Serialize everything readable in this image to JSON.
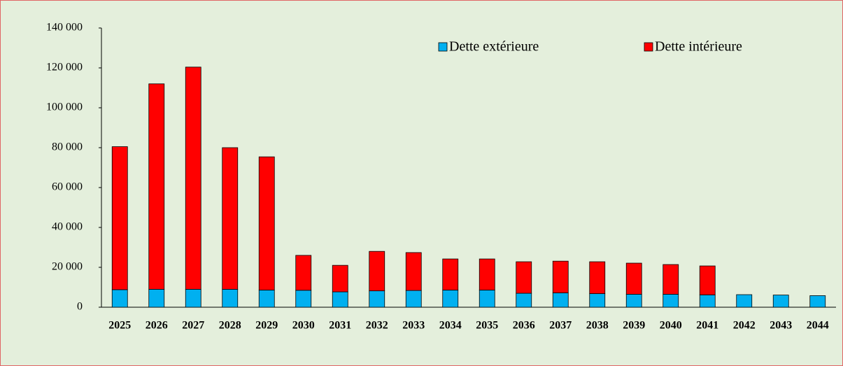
{
  "chart_data": {
    "type": "stacked_bar",
    "categories": [
      "2025",
      "2026",
      "2027",
      "2028",
      "2029",
      "2030",
      "2031",
      "2032",
      "2033",
      "2034",
      "2035",
      "2036",
      "2037",
      "2038",
      "2039",
      "2040",
      "2041",
      "2042",
      "2043",
      "2044"
    ],
    "series": [
      {
        "name": "Dette extérieure",
        "color": "#00b0f0",
        "values": [
          8800,
          9000,
          9000,
          9000,
          8600,
          8500,
          7700,
          8200,
          8400,
          8600,
          8600,
          7000,
          7200,
          6800,
          6500,
          6500,
          6200,
          6300,
          6100,
          5800
        ]
      },
      {
        "name": "Dette intérieure",
        "color": "#ff0000",
        "values": [
          71700,
          103000,
          111400,
          71000,
          66800,
          17500,
          13300,
          19800,
          19000,
          15600,
          15600,
          15800,
          15900,
          16000,
          15600,
          14900,
          14500,
          0,
          0,
          0
        ]
      }
    ],
    "ylim": [
      0,
      140000
    ],
    "yticks": [
      0,
      {
        "value": 20000,
        "label": "20 000"
      },
      {
        "value": 40000,
        "label": "40 000"
      },
      {
        "value": 60000,
        "label": "60 000"
      },
      {
        "value": 80000,
        "label": "80 000"
      },
      {
        "value": 100000,
        "label": "100 000"
      },
      {
        "value": 120000,
        "label": "120 000"
      },
      {
        "value": 140000,
        "label": "140 000"
      }
    ],
    "grid": false,
    "legend": "top-right"
  }
}
